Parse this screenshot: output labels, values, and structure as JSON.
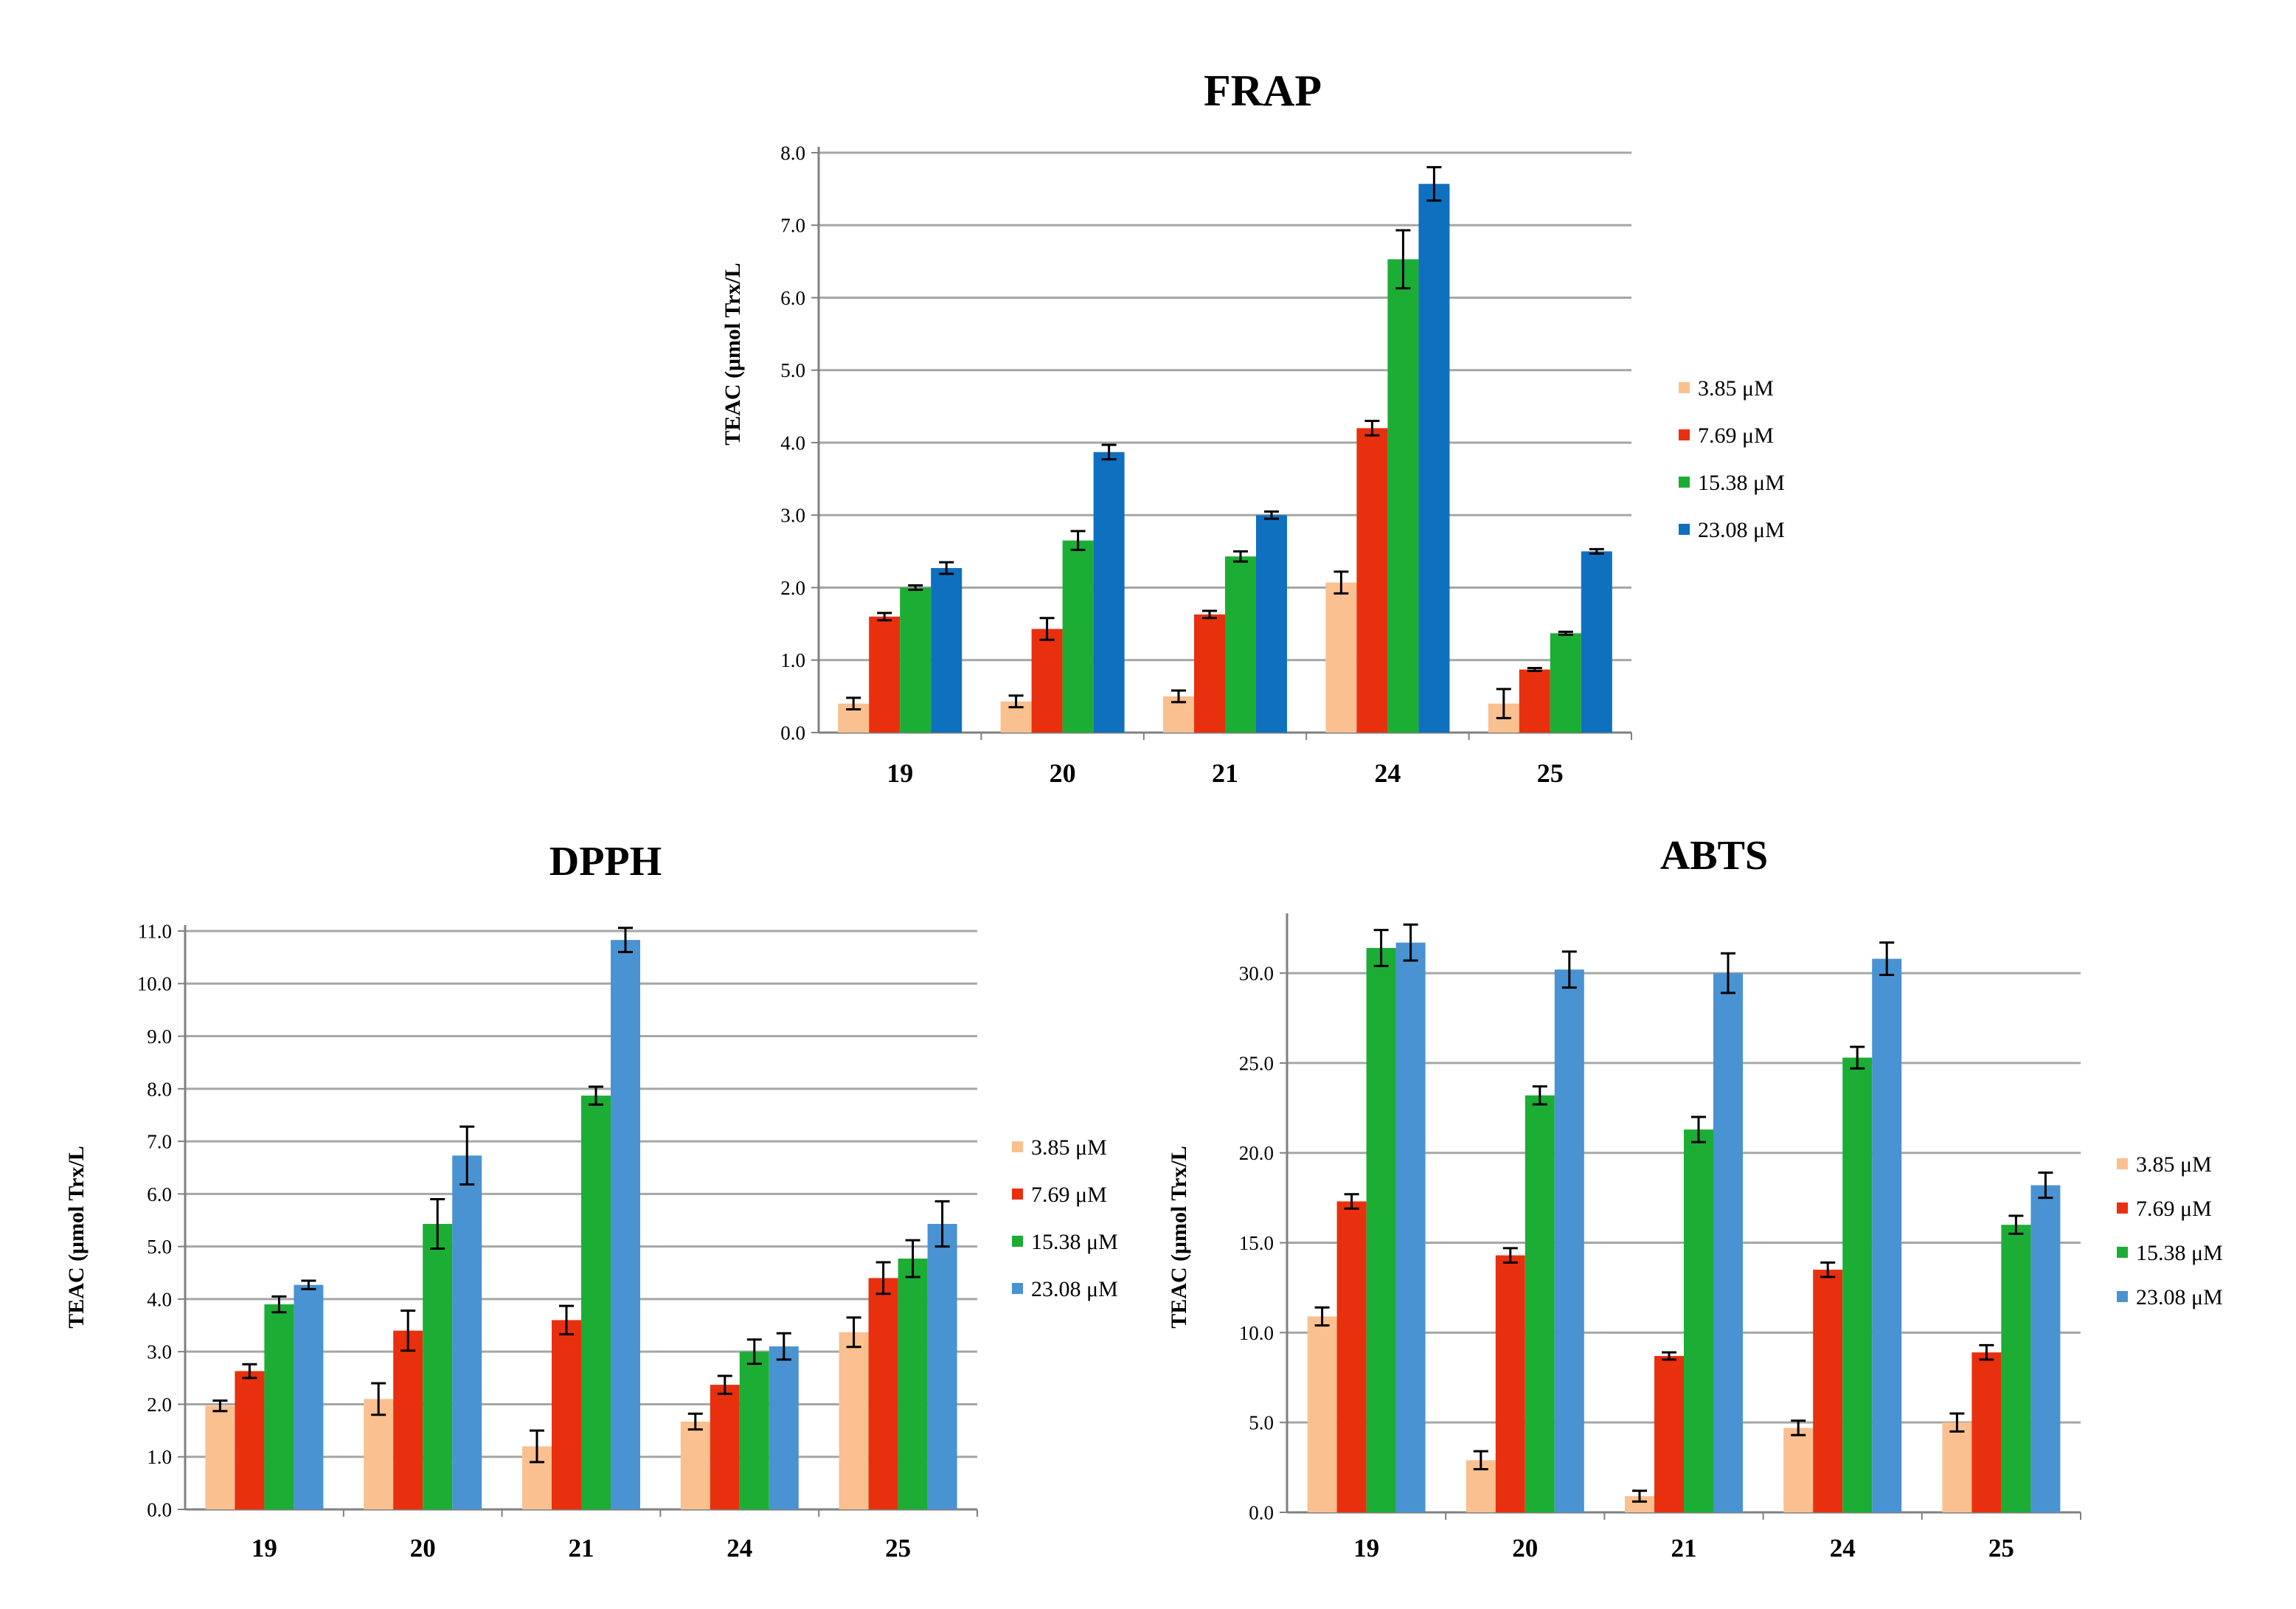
{
  "chart_data": [
    {
      "id": "frap",
      "type": "bar",
      "title": "FRAP",
      "ylabel": "TEAC (μmol Trx/L",
      "xlabel": "",
      "categories": [
        "19",
        "20",
        "21",
        "24",
        "25"
      ],
      "ylim": [
        0,
        8
      ],
      "ytick_step": 1,
      "ytick_labels": [
        "0.0",
        "1.0",
        "2.0",
        "3.0",
        "4.0",
        "5.0",
        "6.0",
        "7.0",
        "8.0"
      ],
      "grid": true,
      "legend_position": "right",
      "series": [
        {
          "name": "3.85  μM",
          "color": "#fac090",
          "values": [
            0.4,
            0.43,
            0.5,
            2.07,
            0.4
          ],
          "errors": [
            0.08,
            0.08,
            0.08,
            0.15,
            0.2
          ]
        },
        {
          "name": "7.69  μM",
          "color": "#e8300f",
          "values": [
            1.6,
            1.43,
            1.63,
            4.2,
            0.87
          ],
          "errors": [
            0.05,
            0.15,
            0.05,
            0.1,
            0.02
          ]
        },
        {
          "name": "15.38  μM",
          "color": "#1cad35",
          "values": [
            2.0,
            2.65,
            2.43,
            6.53,
            1.37
          ],
          "errors": [
            0.03,
            0.13,
            0.07,
            0.4,
            0.02
          ]
        },
        {
          "name": "23.08  μM",
          "color": "#0f70c0",
          "values": [
            2.27,
            3.87,
            3.0,
            7.57,
            2.5
          ],
          "errors": [
            0.08,
            0.1,
            0.05,
            0.23,
            0.03
          ]
        }
      ]
    },
    {
      "id": "dpph",
      "type": "bar",
      "title": "DPPH",
      "ylabel": "TEAC (μmol Trx/L",
      "xlabel": "",
      "categories": [
        "19",
        "20",
        "21",
        "24",
        "25"
      ],
      "ylim": [
        0,
        11
      ],
      "ytick_step": 1,
      "ytick_labels": [
        "0.0",
        "1.0",
        "2.0",
        "3.0",
        "4.0",
        "5.0",
        "6.0",
        "7.0",
        "8.0",
        "9.0",
        "10.0",
        "11.0"
      ],
      "grid": true,
      "legend_position": "right",
      "series": [
        {
          "name": "3.85  μM",
          "color": "#fac090",
          "values": [
            1.97,
            2.1,
            1.2,
            1.67,
            3.37
          ],
          "errors": [
            0.1,
            0.3,
            0.3,
            0.15,
            0.28
          ]
        },
        {
          "name": "7.69  μM",
          "color": "#e8300f",
          "values": [
            2.63,
            3.4,
            3.6,
            2.37,
            4.4
          ],
          "errors": [
            0.13,
            0.38,
            0.27,
            0.17,
            0.3
          ]
        },
        {
          "name": "15.38  μM",
          "color": "#1cad35",
          "values": [
            3.9,
            5.43,
            7.87,
            3.0,
            4.77
          ],
          "errors": [
            0.15,
            0.47,
            0.17,
            0.23,
            0.35
          ]
        },
        {
          "name": "23.08  μM",
          "color": "#4a93d2",
          "values": [
            4.27,
            6.73,
            10.83,
            3.1,
            5.43
          ],
          "errors": [
            0.08,
            0.55,
            0.23,
            0.25,
            0.43
          ]
        }
      ]
    },
    {
      "id": "abts",
      "type": "bar",
      "title": "ABTS",
      "ylabel": "TEAC (μmol Trx/L",
      "xlabel": "",
      "categories": [
        "19",
        "20",
        "21",
        "24",
        "25"
      ],
      "ylim": [
        0,
        33
      ],
      "ytick_step": 5,
      "ytick_labels": [
        "0.0",
        "5.0",
        "10.0",
        "15.0",
        "20.0",
        "25.0",
        "30.0"
      ],
      "grid": true,
      "legend_position": "right",
      "series": [
        {
          "name": "3.85  μM",
          "color": "#fac090",
          "values": [
            10.9,
            2.9,
            0.9,
            4.7,
            5.0
          ],
          "errors": [
            0.5,
            0.5,
            0.3,
            0.4,
            0.5
          ]
        },
        {
          "name": "7.69  μM",
          "color": "#e8300f",
          "values": [
            17.3,
            14.3,
            8.7,
            13.5,
            8.9
          ],
          "errors": [
            0.4,
            0.4,
            0.2,
            0.4,
            0.4
          ]
        },
        {
          "name": "15.38  μM",
          "color": "#1cad35",
          "values": [
            31.4,
            23.2,
            21.3,
            25.3,
            16.0
          ],
          "errors": [
            1.0,
            0.5,
            0.7,
            0.6,
            0.5
          ]
        },
        {
          "name": "23.08  μM",
          "color": "#4a93d2",
          "values": [
            31.7,
            30.2,
            30.0,
            30.8,
            18.2
          ],
          "errors": [
            1.0,
            1.0,
            1.1,
            0.9,
            0.7
          ]
        }
      ]
    }
  ]
}
